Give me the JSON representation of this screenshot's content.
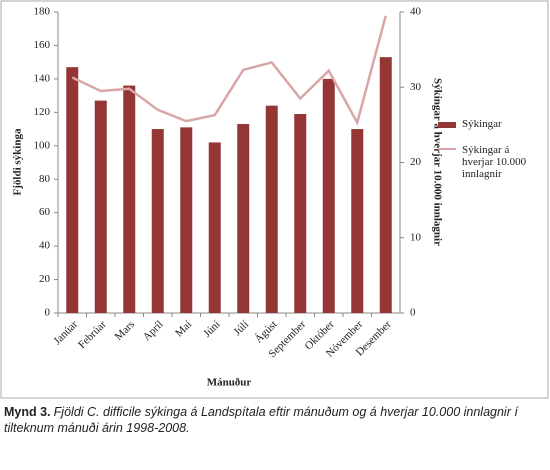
{
  "chart_data": {
    "type": "bar-line",
    "categories": [
      "Janúar",
      "Febrúar",
      "Mars",
      "Apríl",
      "Maí",
      "Júní",
      "Júlí",
      "Ágúst",
      "September",
      "Október",
      "Nóvember",
      "Desember"
    ],
    "series": [
      {
        "name": "Sýkingar",
        "type": "bar",
        "color": "#943634",
        "values": [
          147,
          127,
          136,
          110,
          111,
          102,
          113,
          124,
          119,
          140,
          110,
          153
        ]
      },
      {
        "name": "Sýkingar á hverjar 10.000 innlagnir",
        "type": "line",
        "axis": "y2",
        "color": "#d9a6a6",
        "values": [
          31.3,
          29.5,
          29.8,
          27,
          25.5,
          26.3,
          32.3,
          33.3,
          28.5,
          32.2,
          25.3,
          39.5
        ]
      }
    ],
    "ylim": [
      0,
      180
    ],
    "yticks": [
      0,
      20,
      40,
      60,
      80,
      100,
      120,
      140,
      160,
      180
    ],
    "y2lim": [
      0,
      40
    ],
    "y2ticks": [
      0,
      10,
      20,
      30,
      40
    ],
    "ylabel": "Fjöldi sýkinga",
    "y2label": "Sýkingar á hverjar 10.000 innlagnir",
    "xlabel": "Mánuður",
    "legend": "right"
  },
  "caption": {
    "label": "Mynd 3.",
    "text": "Fjöldi C. difficile sýkinga á Landspítala eftir mánuðum og á hverjar 10.000 innlagnir í tilteknum mánuði árin 1998-2008."
  }
}
